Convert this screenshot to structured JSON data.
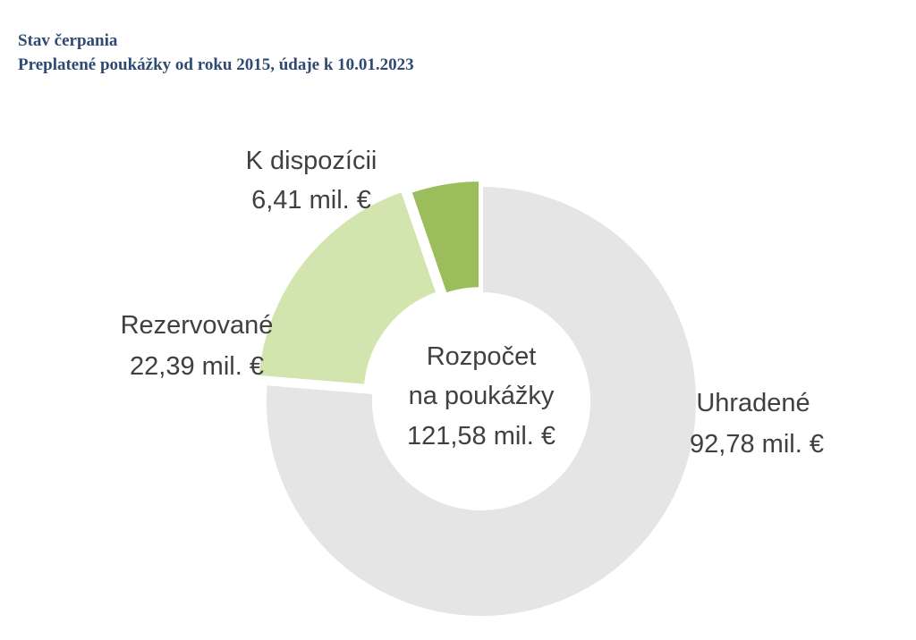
{
  "header": {
    "title": "Stav čerpania",
    "subtitle": "Preplatené poukážky od roku 2015, údaje k 10.01.2023"
  },
  "chart_data": {
    "type": "pie",
    "variant": "donut",
    "unit": "mil. €",
    "center_label": {
      "line1": "Rozpočet",
      "line2": "na poukážky",
      "line3": "121,58 mil. €",
      "total": 121.58
    },
    "slices": [
      {
        "name": "Uhradené",
        "value": 92.78,
        "value_label": "92,78 mil. €",
        "color": "#e5e5e5",
        "exploded": false
      },
      {
        "name": "Rezervované",
        "value": 22.39,
        "value_label": "22,39 mil. €",
        "color": "#d3e5ae",
        "exploded": true
      },
      {
        "name": "K dispozícii",
        "value": 6.41,
        "value_label": "6,41 mil. €",
        "color": "#9bbd5b",
        "exploded": true
      }
    ],
    "legend": "none"
  }
}
